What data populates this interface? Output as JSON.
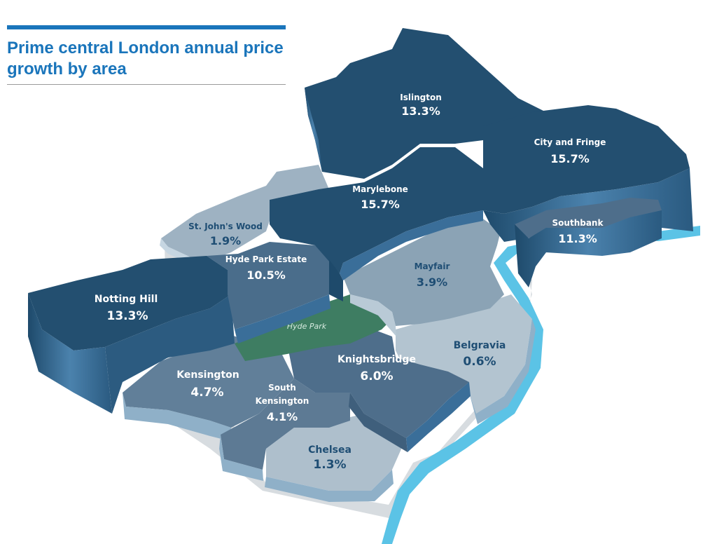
{
  "title": "Prime central London annual price growth by area",
  "colors": {
    "title": "#1a75bb",
    "dark_top": "#234f70",
    "dark_side": "#3a6e99",
    "mid_top": "#4e6f8c",
    "light_top": "#8ea6b8",
    "lighter_top": "#aabdcc",
    "park": "#3e7d62",
    "river": "#5bc3e6",
    "label_dark_bg": "#ffffff",
    "label_light_bg": "#1f4e74"
  },
  "park_label": "Hyde Park",
  "areas": [
    {
      "name": "Islington",
      "value": "13.3%"
    },
    {
      "name": "City and Fringe",
      "value": "15.7%"
    },
    {
      "name": "Marylebone",
      "value": "15.7%"
    },
    {
      "name": "Southbank",
      "value": "11.3%"
    },
    {
      "name": "St. John's Wood",
      "value": "1.9%"
    },
    {
      "name": "Hyde Park Estate",
      "value": "10.5%"
    },
    {
      "name": "Notting Hill",
      "value": "13.3%"
    },
    {
      "name": "Mayfair",
      "value": "3.9%"
    },
    {
      "name": "Belgravia",
      "value": "0.6%"
    },
    {
      "name": "Knightsbridge",
      "value": "6.0%"
    },
    {
      "name": "Kensington",
      "value": "4.7%"
    },
    {
      "name": "South Kensington",
      "value_name_line1": "South",
      "value_name_line2": "Kensington",
      "value": "4.1%"
    },
    {
      "name": "Chelsea",
      "value": "1.3%"
    }
  ]
}
